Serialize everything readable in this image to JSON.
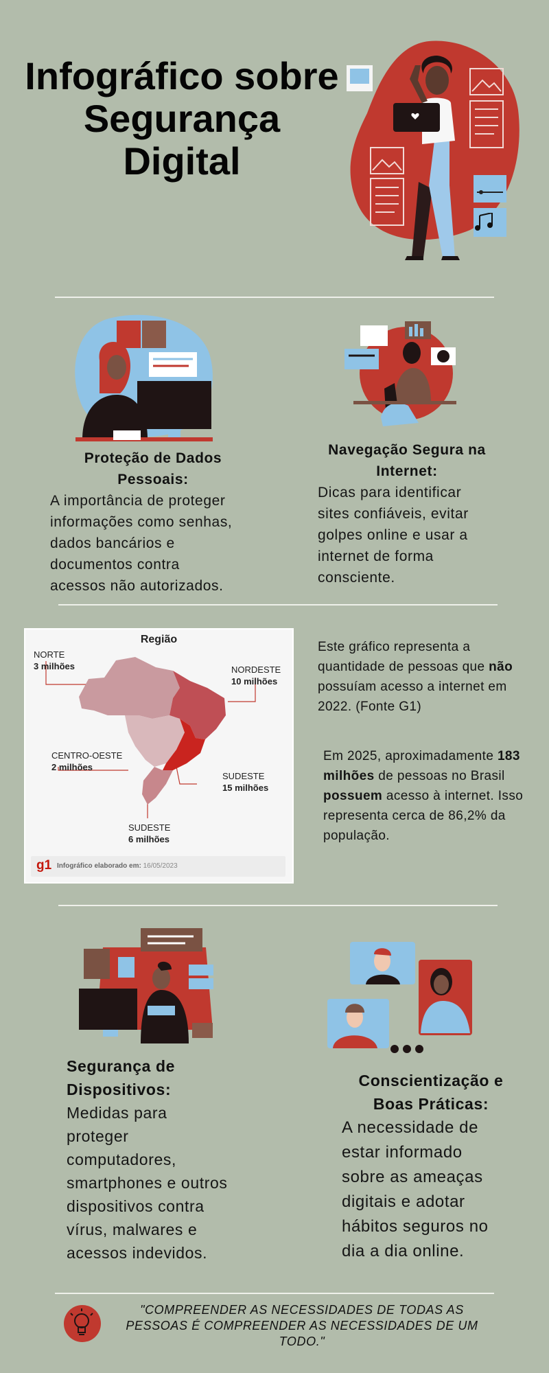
{
  "title": {
    "line1": "Infográfico sobre",
    "line2": "Segurança",
    "line3": "Digital"
  },
  "section_data_protection": {
    "heading_line1": "Proteção de Dados",
    "heading_line2": "Pessoais:",
    "body_lines": [
      "A importância de proteger",
      "informações como senhas,",
      "dados bancários e",
      "documentos contra",
      "acessos não autorizados."
    ]
  },
  "section_safe_browsing": {
    "heading_line1": "Navegação Segura na",
    "heading_line2": "Internet:",
    "body_lines": [
      "Dicas para identificar",
      "sites confiáveis, evitar",
      "golpes online e usar a",
      "internet de forma",
      "consciente."
    ]
  },
  "map_chart": {
    "title": "Região",
    "regions": [
      {
        "name": "NORTE",
        "value": "3 milhões"
      },
      {
        "name": "NORDESTE",
        "value": "10 milhões"
      },
      {
        "name": "CENTRO-OESTE",
        "value": "2 milhões"
      },
      {
        "name": "SUDESTE",
        "value": "15 milhões"
      },
      {
        "name": "SUDESTE",
        "value": "6 milhões"
      }
    ],
    "source_logo": "g1",
    "source_caption_label": "Infográfico elaborado em:",
    "source_caption_date": "16/05/2023",
    "colors": {
      "norte": "#c99a9f",
      "nordeste": "#bf4f55",
      "centro_oeste": "#d9b8bb",
      "sudeste": "#c9241f",
      "sul": "#c7878c"
    }
  },
  "stats": {
    "p1_before": "Este gráfico representa a quantidade de pessoas que ",
    "p1_bold": "não",
    "p1_after": " possuíam acesso a internet em 2022. (Fonte G1)",
    "p2_before": "Em 2025, aproximadamente ",
    "p2_bold1": "183 milhões",
    "p2_mid": " de pessoas no Brasil ",
    "p2_bold2": "possuem",
    "p2_after": " acesso à internet. Isso representa cerca de 86,2% da população."
  },
  "section_device_security": {
    "heading_line1": "Segurança de",
    "heading_line2": "Dispositivos:",
    "body_lines": [
      "Medidas para",
      "proteger",
      "computadores,",
      "smartphones e outros",
      "dispositivos contra",
      "vírus, malwares e",
      "acessos indevidos."
    ]
  },
  "section_awareness": {
    "heading_line1": "Conscientização e",
    "heading_line2": "Boas Práticas:",
    "body_lines": [
      "A necessidade de",
      "estar informado",
      "sobre as ameaças",
      "digitais e adotar",
      "hábitos seguros no",
      "dia a dia online."
    ]
  },
  "quote": {
    "text": "\"COMPREENDER AS NECESSIDADES DE TODAS AS PESSOAS É COMPREENDER AS NECESSIDADES DE UM TODO.\""
  },
  "icons": [
    "lightbulb-icon",
    "music-note-icon",
    "heart-icon",
    "image-placeholder-icon"
  ],
  "colors": {
    "background": "#b2bcab",
    "accent_red": "#c0392f",
    "accent_blue": "#8fc3e6",
    "dark": "#1f1414"
  }
}
